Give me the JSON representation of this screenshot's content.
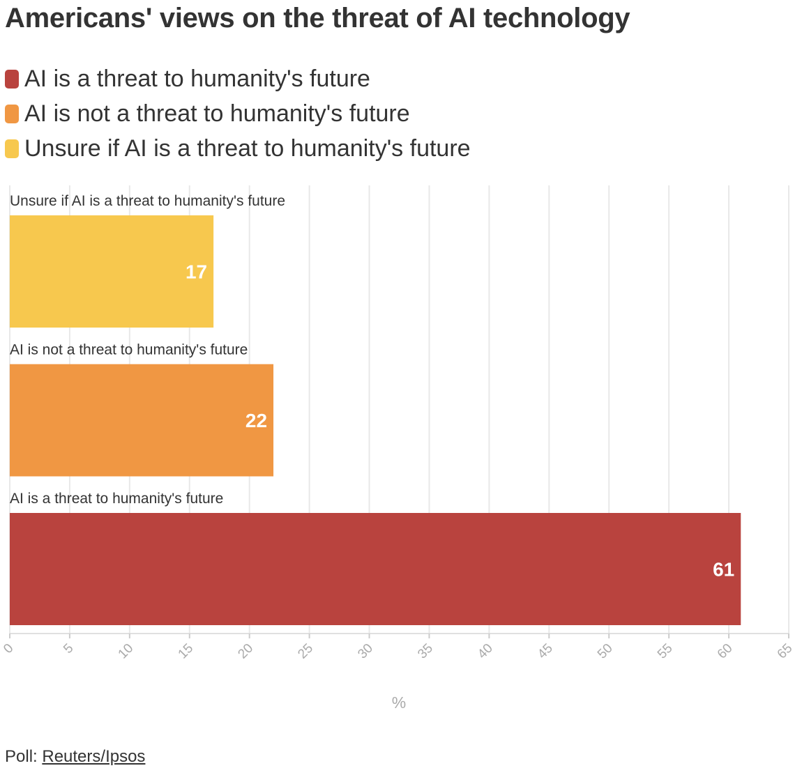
{
  "chart_data": {
    "type": "bar",
    "orientation": "horizontal",
    "title": "Americans' views on the threat of AI technology",
    "categories": [
      "Unsure if AI is a threat to humanity's future",
      "AI is not a threat to humanity's future",
      "AI is a threat to humanity's future"
    ],
    "values": [
      17,
      22,
      61
    ],
    "colors": [
      "#f7c84e",
      "#f09743",
      "#b9433e"
    ],
    "xlabel": "%",
    "xlim": [
      0,
      65
    ],
    "xticks": [
      0,
      5,
      10,
      15,
      20,
      25,
      30,
      35,
      40,
      45,
      50,
      55,
      60,
      65
    ],
    "grid": true,
    "legend_placement": "top",
    "legend": [
      {
        "label": "AI is a threat to humanity's future",
        "color": "#b9433e"
      },
      {
        "label": "AI is not a threat to humanity's future",
        "color": "#f09743"
      },
      {
        "label": "Unsure if AI is a threat to humanity's future",
        "color": "#f7c84e"
      }
    ]
  },
  "footer": {
    "prefix": "Poll: ",
    "source": "Reuters/Ipsos"
  }
}
